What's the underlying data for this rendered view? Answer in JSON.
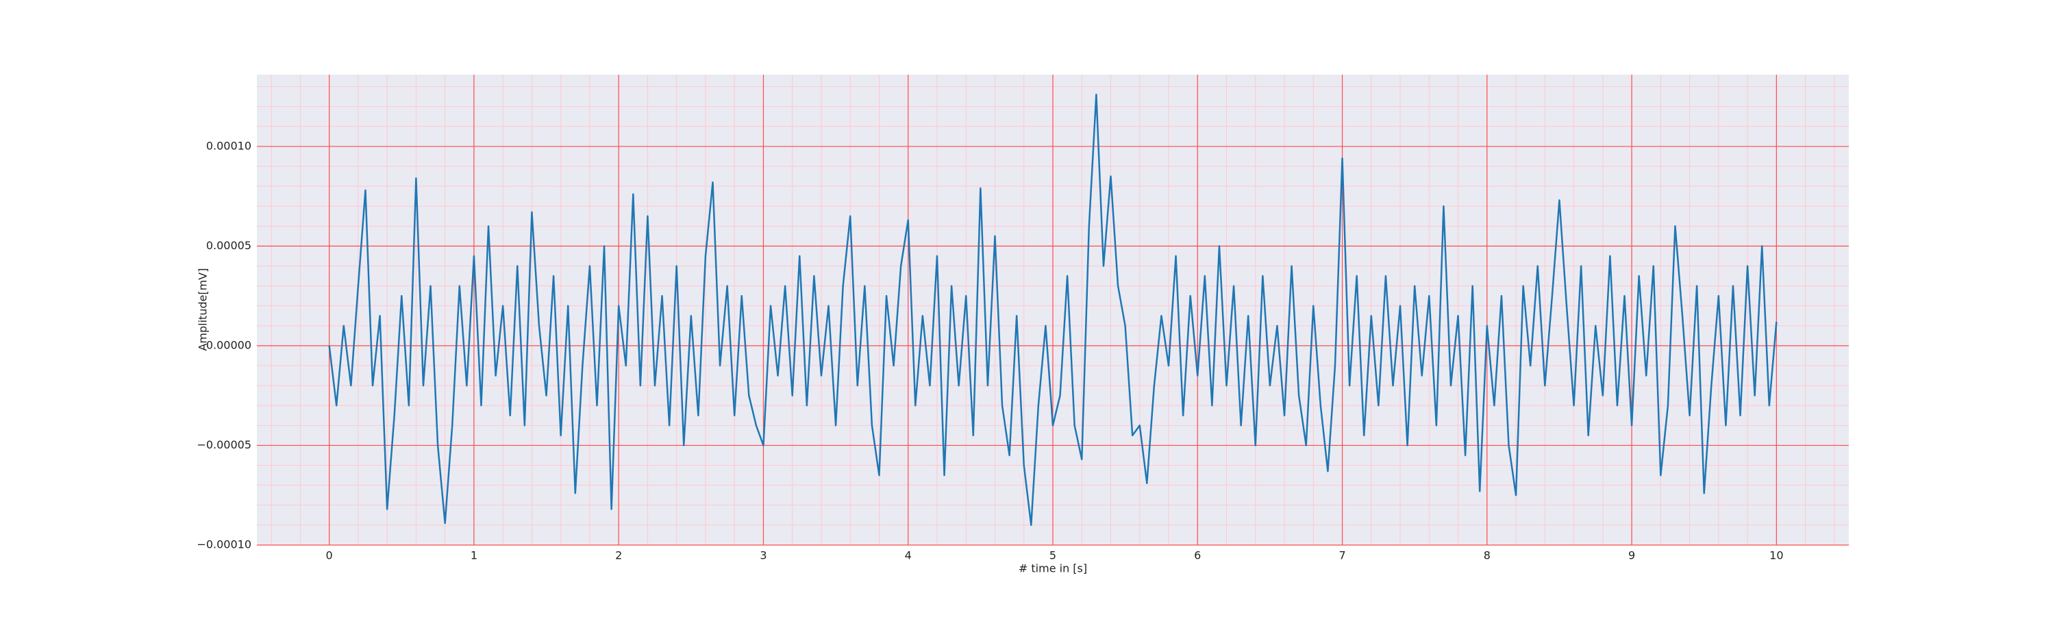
{
  "chart_data": {
    "type": "line",
    "xlabel": "# time in [s]",
    "ylabel": "Amplitude[mV]",
    "x": [
      0,
      0.05,
      0.1,
      0.15,
      0.2,
      0.25,
      0.3,
      0.35,
      0.4,
      0.45,
      0.5,
      0.55,
      0.6,
      0.65,
      0.7,
      0.75,
      0.8,
      0.85,
      0.9,
      0.95,
      1,
      1.05,
      1.1,
      1.15,
      1.2,
      1.25,
      1.3,
      1.35,
      1.4,
      1.45,
      1.5,
      1.55,
      1.6,
      1.65,
      1.7,
      1.75,
      1.8,
      1.85,
      1.9,
      1.95,
      2,
      2.05,
      2.1,
      2.15,
      2.2,
      2.25,
      2.3,
      2.35,
      2.4,
      2.45,
      2.5,
      2.55,
      2.6,
      2.65,
      2.7,
      2.75,
      2.8,
      2.85,
      2.9,
      2.95,
      3,
      3.05,
      3.1,
      3.15,
      3.2,
      3.25,
      3.3,
      3.35,
      3.4,
      3.45,
      3.5,
      3.55,
      3.6,
      3.65,
      3.7,
      3.75,
      3.8,
      3.85,
      3.9,
      3.95,
      4,
      4.05,
      4.1,
      4.15,
      4.2,
      4.25,
      4.3,
      4.35,
      4.4,
      4.45,
      4.5,
      4.55,
      4.6,
      4.65,
      4.7,
      4.75,
      4.8,
      4.85,
      4.9,
      4.95,
      5,
      5.05,
      5.1,
      5.15,
      5.2,
      5.25,
      5.3,
      5.35,
      5.4,
      5.45,
      5.5,
      5.55,
      5.6,
      5.65,
      5.7,
      5.75,
      5.8,
      5.85,
      5.9,
      5.95,
      6,
      6.05,
      6.1,
      6.15,
      6.2,
      6.25,
      6.3,
      6.35,
      6.4,
      6.45,
      6.5,
      6.55,
      6.6,
      6.65,
      6.7,
      6.75,
      6.8,
      6.85,
      6.9,
      6.95,
      7,
      7.05,
      7.1,
      7.15,
      7.2,
      7.25,
      7.3,
      7.35,
      7.4,
      7.45,
      7.5,
      7.55,
      7.6,
      7.65,
      7.7,
      7.75,
      7.8,
      7.85,
      7.9,
      7.95,
      8,
      8.05,
      8.1,
      8.15,
      8.2,
      8.25,
      8.3,
      8.35,
      8.4,
      8.45,
      8.5,
      8.55,
      8.6,
      8.65,
      8.7,
      8.75,
      8.8,
      8.85,
      8.9,
      8.95,
      9,
      9.05,
      9.1,
      9.15,
      9.2,
      9.25,
      9.3,
      9.35,
      9.4,
      9.45,
      9.5,
      9.55,
      9.6,
      9.65,
      9.7,
      9.75,
      9.8,
      9.85,
      9.9,
      9.95,
      10
    ],
    "series": [
      {
        "color": "#1f77b4",
        "values": [
          0,
          -3e-05,
          1e-05,
          -2e-05,
          3e-05,
          7.8e-05,
          -2e-05,
          1.5e-05,
          -8.2e-05,
          -3.5e-05,
          2.5e-05,
          -3e-05,
          8.4e-05,
          -2e-05,
          3e-05,
          -5e-05,
          -8.9e-05,
          -4e-05,
          3e-05,
          -2e-05,
          4.5e-05,
          -3e-05,
          6e-05,
          -1.5e-05,
          2e-05,
          -3.5e-05,
          4e-05,
          -4e-05,
          6.7e-05,
          1e-05,
          -2.5e-05,
          3.5e-05,
          -4.5e-05,
          2e-05,
          -7.4e-05,
          -1e-05,
          4e-05,
          -3e-05,
          5e-05,
          -8.2e-05,
          2e-05,
          -1e-05,
          7.6e-05,
          -2e-05,
          6.5e-05,
          -2e-05,
          2.5e-05,
          -4e-05,
          4e-05,
          -5e-05,
          1.5e-05,
          -3.5e-05,
          4.5e-05,
          8.2e-05,
          -1e-05,
          3e-05,
          -3.5e-05,
          2.5e-05,
          -2.5e-05,
          -4e-05,
          -5e-05,
          2e-05,
          -1.5e-05,
          3e-05,
          -2.5e-05,
          4.5e-05,
          -3e-05,
          3.5e-05,
          -1.5e-05,
          2e-05,
          -4e-05,
          3e-05,
          6.5e-05,
          -2e-05,
          3e-05,
          -4e-05,
          -6.5e-05,
          2.5e-05,
          -1e-05,
          4e-05,
          6.3e-05,
          -3e-05,
          1.5e-05,
          -2e-05,
          4.5e-05,
          -6.5e-05,
          3e-05,
          -2e-05,
          2.5e-05,
          -4.5e-05,
          7.9e-05,
          -2e-05,
          5.5e-05,
          -3e-05,
          -5.5e-05,
          1.5e-05,
          -6e-05,
          -9e-05,
          -3e-05,
          1e-05,
          -4e-05,
          -2.5e-05,
          3.5e-05,
          -4e-05,
          -5.7e-05,
          6e-05,
          0.000126,
          4e-05,
          8.5e-05,
          3e-05,
          1e-05,
          -4.5e-05,
          -4e-05,
          -6.9e-05,
          -2e-05,
          1.5e-05,
          -1e-05,
          4.5e-05,
          -3.5e-05,
          2.5e-05,
          -1.5e-05,
          3.5e-05,
          -3e-05,
          5e-05,
          -2e-05,
          3e-05,
          -4e-05,
          1.5e-05,
          -5e-05,
          3.5e-05,
          -2e-05,
          1e-05,
          -3.5e-05,
          4e-05,
          -2.5e-05,
          -5e-05,
          2e-05,
          -3e-05,
          -6.3e-05,
          -1e-05,
          9.4e-05,
          -2e-05,
          3.5e-05,
          -4.5e-05,
          1.5e-05,
          -3e-05,
          3.5e-05,
          -2e-05,
          2e-05,
          -5e-05,
          3e-05,
          -1.5e-05,
          2.5e-05,
          -4e-05,
          7e-05,
          -2e-05,
          1.5e-05,
          -5.5e-05,
          3e-05,
          -7.3e-05,
          1e-05,
          -3e-05,
          2.5e-05,
          -5e-05,
          -7.5e-05,
          3e-05,
          -1e-05,
          4e-05,
          -2e-05,
          2.5e-05,
          7.3e-05,
          2e-05,
          -3e-05,
          4e-05,
          -4.5e-05,
          1e-05,
          -2.5e-05,
          4.5e-05,
          -3e-05,
          2.5e-05,
          -4e-05,
          3.5e-05,
          -1.5e-05,
          4e-05,
          -6.5e-05,
          -3e-05,
          6e-05,
          1.5e-05,
          -3.5e-05,
          3e-05,
          -7.4e-05,
          -2e-05,
          2.5e-05,
          -4e-05,
          3e-05,
          -3.5e-05,
          4e-05,
          -2.5e-05,
          5e-05,
          -3e-05,
          1.2e-05
        ]
      }
    ],
    "xlim": [
      -0.5,
      10.5
    ],
    "ylim": [
      -0.0001,
      0.000136
    ],
    "xticks": [
      0,
      1,
      2,
      3,
      4,
      5,
      6,
      7,
      8,
      9,
      10
    ],
    "yticks": [
      {
        "value": -0.0001,
        "label": "−0.00010"
      },
      {
        "value": -5e-05,
        "label": "−0.00005"
      },
      {
        "value": 0,
        "label": "0.00000"
      },
      {
        "value": 5e-05,
        "label": "0.00005"
      },
      {
        "value": 0.0001,
        "label": "0.00010"
      }
    ],
    "xminorticks": [
      -0.4,
      -0.2,
      0.2,
      0.4,
      0.6,
      0.8,
      1.2,
      1.4,
      1.6,
      1.8,
      2.2,
      2.4,
      2.6,
      2.8,
      3.2,
      3.4,
      3.6,
      3.8,
      4.2,
      4.4,
      4.6,
      4.8,
      5.2,
      5.4,
      5.6,
      5.8,
      6.2,
      6.4,
      6.6,
      6.8,
      7.2,
      7.4,
      7.6,
      7.8,
      8.2,
      8.4,
      8.6,
      8.8,
      9.2,
      9.4,
      9.6,
      9.8,
      10.2,
      10.4
    ],
    "yminorticks": [
      -9e-05,
      -8e-05,
      -7e-05,
      -6e-05,
      -4e-05,
      -3e-05,
      -2e-05,
      -1e-05,
      1e-05,
      2e-05,
      3e-05,
      4e-05,
      6e-05,
      7e-05,
      8e-05,
      9e-05,
      0.00011,
      0.00012,
      0.00013
    ],
    "grid": true,
    "major_grid_color": "#ff4c4c",
    "minor_grid_color": "#ffc8d0",
    "background": "#eaeaf2"
  }
}
